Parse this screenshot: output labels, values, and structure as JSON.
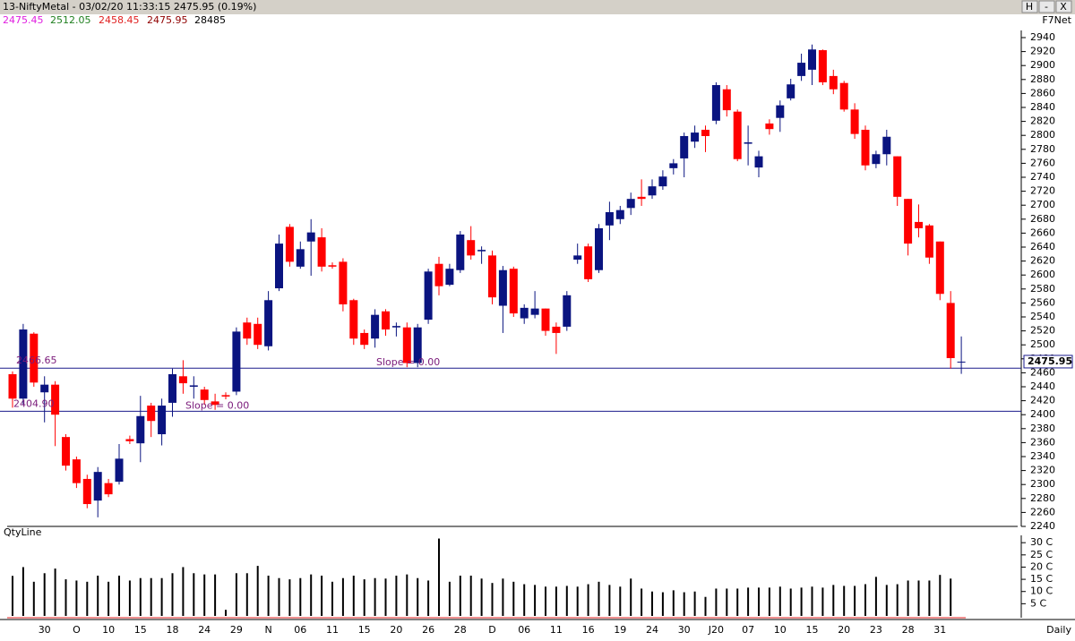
{
  "header": {
    "title": "13-NiftyMetal - 03/02/20 11:33:15 2475.95 (0.19%)",
    "buttons": [
      "H",
      "-",
      "X"
    ],
    "open": 2475.45,
    "high": 2512.05,
    "low": 2458.45,
    "close": 2475.95,
    "volume": 28485,
    "feed": "F7Net"
  },
  "chart_data": {
    "type": "candlestick",
    "period": "Daily",
    "volume_title": "QtyLine",
    "categories": [
      null,
      null,
      null,
      "30",
      null,
      null,
      "O",
      null,
      null,
      "10",
      null,
      null,
      "15",
      null,
      null,
      "18",
      null,
      null,
      "24",
      null,
      null,
      "29",
      null,
      null,
      "N",
      null,
      null,
      "06",
      null,
      null,
      "11",
      null,
      null,
      "15",
      null,
      null,
      "20",
      null,
      null,
      "26",
      null,
      null,
      "28",
      null,
      null,
      "D",
      null,
      null,
      "06",
      null,
      null,
      "11",
      null,
      null,
      "16",
      null,
      null,
      "19",
      null,
      null,
      "24",
      null,
      null,
      "30",
      null,
      null,
      "J20",
      null,
      null,
      "07",
      null,
      null,
      "10",
      null,
      null,
      "15",
      null,
      null,
      "20",
      null,
      null,
      "23",
      null,
      null,
      "28",
      null,
      null,
      "31",
      null,
      null
    ],
    "open": [
      2458,
      2423,
      2516,
      2432,
      2443,
      2368,
      2336,
      2308,
      2277,
      2302,
      2304,
      2365,
      2359,
      2413,
      2372,
      2417,
      2455,
      2440,
      2436,
      2419,
      2428,
      2433,
      2532,
      2530,
      2498,
      2581,
      2669,
      2612,
      2648,
      2654,
      2614,
      2619,
      2564,
      2517,
      2509,
      2548,
      2525,
      2525,
      2474,
      2536,
      2616,
      2586,
      2607,
      2650,
      2634,
      2628,
      2556,
      2609,
      2538,
      2543,
      2552,
      2526,
      2526,
      2622,
      2641,
      2607,
      2671,
      2680,
      2696,
      2712,
      2714,
      2727,
      2753,
      2767,
      2791,
      2808,
      2821,
      2866,
      2834,
      2788,
      2754,
      2817,
      2825,
      2853,
      2885,
      2894,
      2922,
      2885,
      2875,
      2837,
      2808,
      2759,
      2773,
      2770,
      2709,
      2676,
      2671,
      2648,
      2560,
      2475.45
    ],
    "high": [
      2462,
      2530,
      2518,
      2455,
      2448,
      2372,
      2340,
      2314,
      2325,
      2308,
      2358,
      2370,
      2427,
      2417,
      2423,
      2466,
      2478,
      2455,
      2440,
      2430,
      2432,
      2525,
      2539,
      2539,
      2577,
      2658,
      2673,
      2648,
      2680,
      2667,
      2618,
      2624,
      2566,
      2522,
      2551,
      2551,
      2532,
      2532,
      2530,
      2609,
      2626,
      2616,
      2663,
      2670,
      2641,
      2635,
      2613,
      2612,
      2558,
      2577,
      2552,
      2532,
      2577,
      2645,
      2645,
      2673,
      2705,
      2699,
      2718,
      2737,
      2737,
      2750,
      2766,
      2804,
      2814,
      2814,
      2876,
      2872,
      2837,
      2814,
      2778,
      2823,
      2850,
      2881,
      2917,
      2930,
      2923,
      2894,
      2878,
      2846,
      2814,
      2778,
      2808,
      2770,
      2709,
      2701,
      2673,
      2648,
      2577,
      2512.05
    ],
    "low": [
      2410,
      2414,
      2440,
      2389,
      2355,
      2320,
      2295,
      2266,
      2253,
      2282,
      2300,
      2358,
      2332,
      2368,
      2356,
      2397,
      2430,
      2423,
      2414,
      2407,
      2422,
      2428,
      2500,
      2494,
      2492,
      2577,
      2612,
      2609,
      2599,
      2605,
      2609,
      2548,
      2500,
      2494,
      2496,
      2513,
      2512,
      2468,
      2468,
      2530,
      2571,
      2584,
      2603,
      2622,
      2616,
      2558,
      2517,
      2540,
      2530,
      2538,
      2513,
      2487,
      2520,
      2616,
      2590,
      2603,
      2650,
      2673,
      2686,
      2699,
      2709,
      2722,
      2744,
      2740,
      2782,
      2776,
      2816,
      2827,
      2763,
      2757,
      2740,
      2801,
      2805,
      2850,
      2878,
      2872,
      2872,
      2859,
      2834,
      2795,
      2750,
      2753,
      2757,
      2699,
      2628,
      2654,
      2616,
      2564,
      2466,
      2458.45
    ],
    "close": [
      2423,
      2522,
      2446,
      2443,
      2400,
      2327,
      2302,
      2272,
      2318,
      2286,
      2337,
      2362,
      2398,
      2391,
      2413,
      2458,
      2445,
      2442,
      2421,
      2414,
      2426,
      2519,
      2509,
      2500,
      2564,
      2645,
      2619,
      2637,
      2661,
      2612,
      2612,
      2558,
      2509,
      2500,
      2543,
      2522,
      2527,
      2474,
      2525,
      2605,
      2584,
      2609,
      2658,
      2628,
      2636,
      2568,
      2607,
      2545,
      2553,
      2552,
      2520,
      2517,
      2571,
      2628,
      2594,
      2667,
      2690,
      2693,
      2709,
      2709,
      2727,
      2741,
      2760,
      2799,
      2804,
      2799,
      2872,
      2836,
      2766,
      2790,
      2770,
      2809,
      2843,
      2873,
      2904,
      2923,
      2876,
      2866,
      2837,
      2802,
      2757,
      2773,
      2798,
      2712,
      2645,
      2667,
      2625,
      2573,
      2481,
      2475.95
    ],
    "volume": [
      16.4,
      20,
      14,
      17.5,
      19.4,
      15,
      14.5,
      14,
      16.5,
      14,
      16.5,
      14.5,
      15.5,
      15.5,
      15.5,
      17.5,
      20,
      17.5,
      17,
      17,
      2.5,
      17.5,
      17.5,
      20.5,
      16.5,
      15.5,
      15,
      15.5,
      17,
      16.5,
      14,
      15.5,
      16.5,
      15,
      15.5,
      15.3,
      16.5,
      17,
      15.5,
      14.5,
      31.7,
      14,
      16.5,
      16.5,
      15.3,
      13.5,
      15.3,
      14,
      13,
      12.7,
      12,
      12,
      12.3,
      12,
      13,
      14,
      12.7,
      12,
      15.3,
      11.2,
      10,
      9.7,
      10.5,
      9.7,
      10,
      7.8,
      11.2,
      11.2,
      11.2,
      11.6,
      11.6,
      11.6,
      12,
      11.2,
      11.6,
      12,
      11.6,
      12.7,
      12.3,
      12.3,
      13,
      16,
      12.7,
      13,
      14.5,
      14.5,
      14.5,
      16.8,
      15.3,
      null
    ],
    "up_color": "#0a1480",
    "down_color": "#ff0000",
    "volume_color": "#000000",
    "ylim": [
      2240,
      2940
    ],
    "yticks": [
      2240,
      2260,
      2280,
      2300,
      2320,
      2340,
      2360,
      2380,
      2400,
      2420,
      2440,
      2460,
      2480,
      2500,
      2520,
      2540,
      2560,
      2580,
      2600,
      2620,
      2640,
      2660,
      2680,
      2700,
      2720,
      2740,
      2760,
      2780,
      2800,
      2820,
      2840,
      2860,
      2880,
      2900,
      2920,
      2940
    ],
    "vlim": [
      0,
      33
    ],
    "vticks": [
      {
        "value": 5,
        "label": "5 C"
      },
      {
        "value": 10,
        "label": "10 C"
      },
      {
        "value": 15,
        "label": "15 C"
      },
      {
        "value": 20,
        "label": "20 C"
      },
      {
        "value": 25,
        "label": "25 C"
      },
      {
        "value": 30,
        "label": "30 C"
      }
    ],
    "last_price": 2475.95,
    "hlines": [
      {
        "value": 2466.65,
        "label": "2466.65",
        "note": "Slope = 0.00"
      },
      {
        "value": 2404.9,
        "label": "2404.90",
        "note": "Slope = 0.00"
      }
    ],
    "hline_color": "#1a1a8c"
  }
}
